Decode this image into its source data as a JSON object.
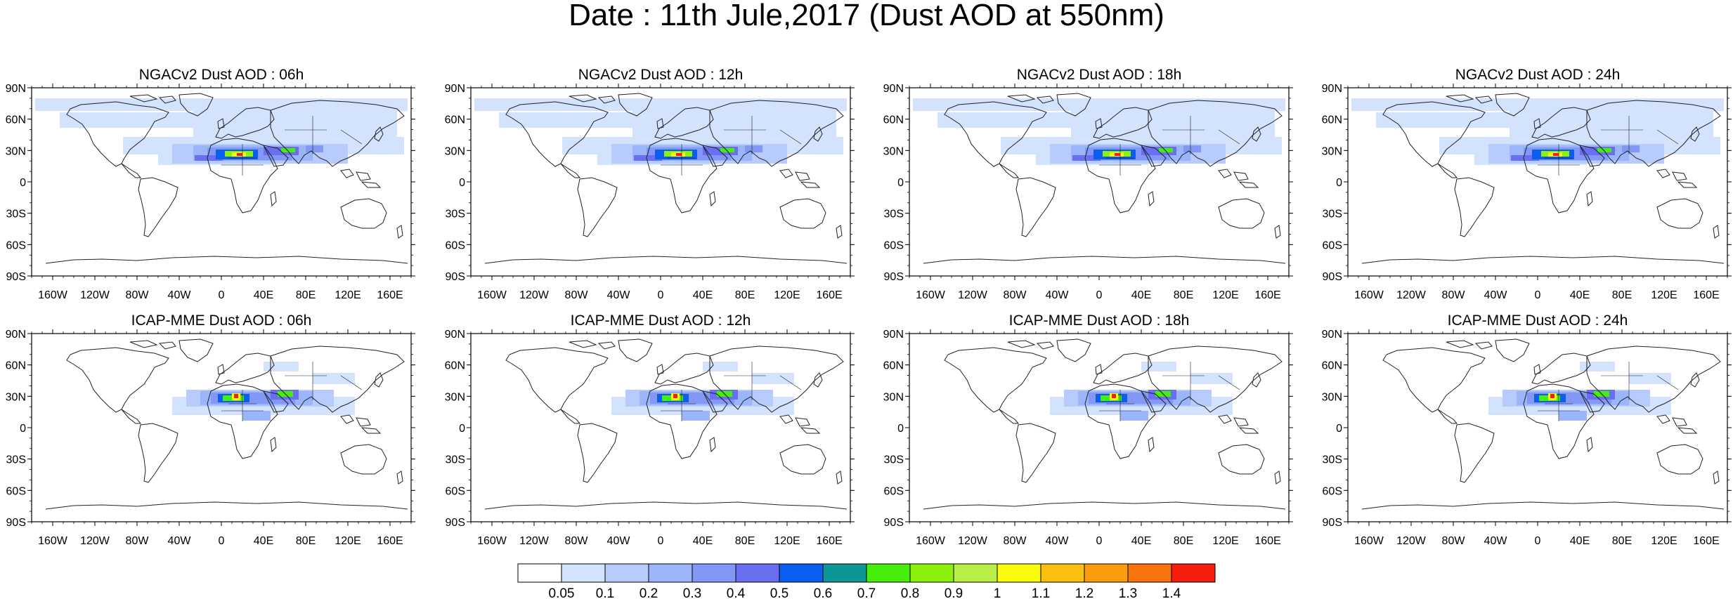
{
  "title": "Date : 11th Jule,2017 (Dust AOD at 550nm)",
  "panels": [
    {
      "title": "NGACv2 Dust AOD : 06h"
    },
    {
      "title": "NGACv2 Dust AOD : 12h"
    },
    {
      "title": "NGACv2 Dust AOD : 18h"
    },
    {
      "title": "NGACv2 Dust AOD : 24h"
    },
    {
      "title": "ICAP-MME Dust AOD : 06h"
    },
    {
      "title": "ICAP-MME Dust AOD : 12h"
    },
    {
      "title": "ICAP-MME Dust AOD : 18h"
    },
    {
      "title": "ICAP-MME Dust AOD : 24h"
    }
  ],
  "lat_ticks": [
    "90N",
    "60N",
    "30N",
    "0",
    "30S",
    "60S",
    "90S"
  ],
  "lon_ticks": [
    "160W",
    "120W",
    "80W",
    "40W",
    "0",
    "40E",
    "80E",
    "120E",
    "160E"
  ],
  "colorbar": {
    "colors": [
      "#ffffff",
      "#d3e2fd",
      "#b8cbfd",
      "#9bb5fb",
      "#8397f7",
      "#6a6ef0",
      "#0b5ff0",
      "#0d9696",
      "#45ef0b",
      "#8bf00a",
      "#b9f047",
      "#fafa0b",
      "#fbc010",
      "#fa9b10",
      "#f8720d",
      "#f51d0d"
    ],
    "labels": [
      "0.05",
      "0.1",
      "0.2",
      "0.3",
      "0.4",
      "0.5",
      "0.6",
      "0.7",
      "0.8",
      "0.9",
      "1",
      "1.1",
      "1.2",
      "1.3",
      "1.4"
    ]
  }
}
